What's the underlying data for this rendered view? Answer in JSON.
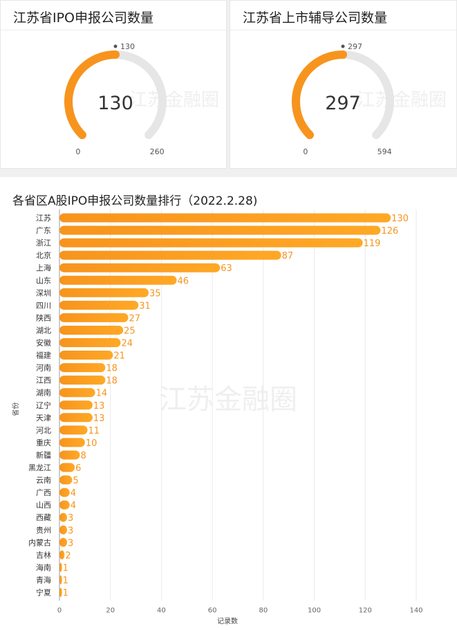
{
  "gauges": [
    {
      "title": "江苏省IPO申报公司数量",
      "value": 130,
      "min": 0,
      "max": 260,
      "value_label": "130",
      "min_label": "0",
      "max_label": "260"
    },
    {
      "title": "江苏省上市辅导公司数量",
      "value": 297,
      "min": 0,
      "max": 594,
      "value_label": "297",
      "min_label": "0",
      "max_label": "594"
    }
  ],
  "watermark": "江苏金融圈",
  "colors": {
    "accent": "#f7941d",
    "accent_light": "#ffa826",
    "track": "#e6e6e6",
    "label": "#f7941d"
  },
  "chart_data": {
    "type": "bar",
    "orientation": "horizontal",
    "title": "各省区A股IPO申报公司数量排行（2022.2.28)",
    "xlabel": "记录数",
    "ylabel": "省份",
    "xlim": [
      0,
      140
    ],
    "xticks": [
      0,
      20,
      40,
      60,
      80,
      100,
      120,
      140
    ],
    "grid": true,
    "categories": [
      "江苏",
      "广东",
      "浙江",
      "北京",
      "上海",
      "山东",
      "深圳",
      "四川",
      "陕西",
      "湖北",
      "安徽",
      "福建",
      "河南",
      "江西",
      "湖南",
      "辽宁",
      "天津",
      "河北",
      "重庆",
      "新疆",
      "黑龙江",
      "云南",
      "广西",
      "山西",
      "西藏",
      "贵州",
      "内蒙古",
      "吉林",
      "海南",
      "青海",
      "宁夏"
    ],
    "values": [
      130,
      126,
      119,
      87,
      63,
      46,
      35,
      31,
      27,
      25,
      24,
      21,
      18,
      18,
      14,
      13,
      13,
      11,
      10,
      8,
      6,
      5,
      4,
      4,
      3,
      3,
      3,
      2,
      1,
      1,
      1
    ]
  }
}
